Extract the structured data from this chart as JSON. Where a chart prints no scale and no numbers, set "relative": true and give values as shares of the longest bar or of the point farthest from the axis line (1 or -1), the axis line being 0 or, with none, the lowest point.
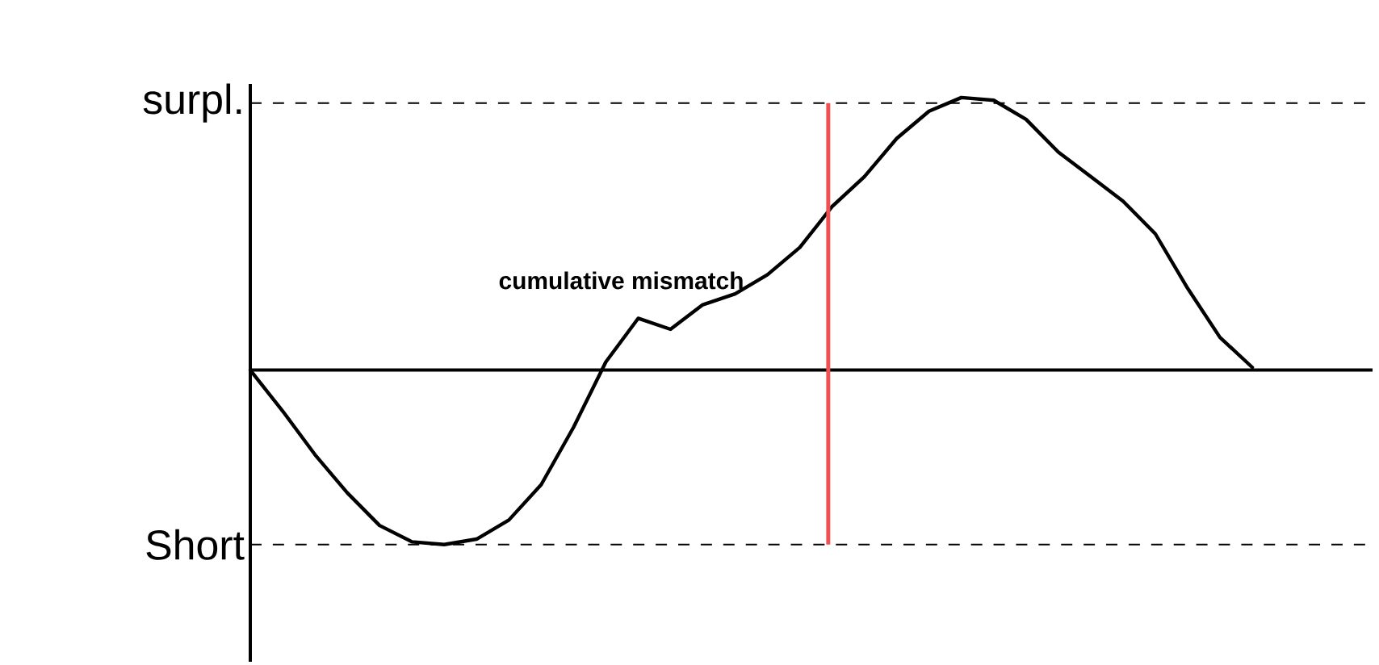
{
  "chart_data": {
    "type": "line",
    "relative": true,
    "categories": [
      null,
      null,
      null,
      null,
      null,
      null,
      null,
      null,
      null,
      null,
      null,
      null,
      null,
      null,
      null,
      null,
      null,
      null,
      null,
      null,
      null,
      null,
      null,
      null,
      null,
      null,
      null,
      null,
      null,
      null,
      null,
      null
    ],
    "values": [
      0,
      -0.15,
      -0.31,
      -0.45,
      -0.57,
      -0.63,
      -0.64,
      -0.62,
      -0.55,
      -0.42,
      -0.21,
      0.03,
      0.19,
      0.15,
      0.24,
      0.28,
      0.35,
      0.45,
      0.6,
      0.71,
      0.85,
      0.95,
      1,
      0.99,
      0.92,
      0.8,
      0.71,
      0.62,
      0.5,
      0.3,
      0.12,
      0.01
    ],
    "color": "#000000",
    "ref_lines": [
      {
        "axis": "y",
        "value": 0.98,
        "label": "surpl.",
        "line_style": "dashed",
        "color": "#000000"
      },
      {
        "axis": "y",
        "value": -0.64,
        "label": "Short",
        "line_style": "dashed",
        "color": "#000000"
      }
    ],
    "annotations": [
      "cumulative mismatch"
    ]
  }
}
